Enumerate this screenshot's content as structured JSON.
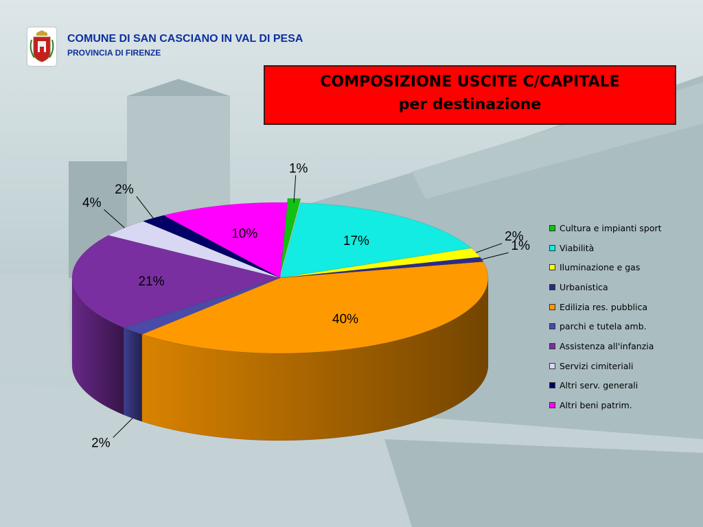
{
  "header": {
    "org_name": "COMUNE DI SAN CASCIANO IN VAL DI PESA",
    "org_sub": "PROVINCIA DI FIRENZE",
    "crest_icon": "municipal-crest-icon"
  },
  "chart_data": {
    "type": "pie",
    "title_line1": "COMPOSIZIONE USCITE C/CAPITALE",
    "title_line2": "per  destinazione",
    "style": "3d",
    "legend_position": "right",
    "categories": [
      "Cultura e impianti sport",
      "Viabilità",
      "Iluminazione e gas",
      "Urbanistica",
      "Edilizia res. pubblica",
      "parchi e tutela amb.",
      "Assistenza all'infanzia",
      "Servizi cimiteriali",
      "Altri serv. generali",
      "Altri beni patrim."
    ],
    "values": [
      1,
      17,
      2,
      1,
      40,
      2,
      21,
      4,
      2,
      10
    ],
    "labels": [
      "1%",
      "17%",
      "2%",
      "1%",
      "40%",
      "2%",
      "21%",
      "4%",
      "2%",
      "10%"
    ],
    "colors": [
      "#13c113",
      "#12ece2",
      "#ffff00",
      "#2b2b87",
      "#ff9900",
      "#4a4aa8",
      "#7a2fa0",
      "#d8d8f5",
      "#000066",
      "#ff00ff"
    ]
  }
}
